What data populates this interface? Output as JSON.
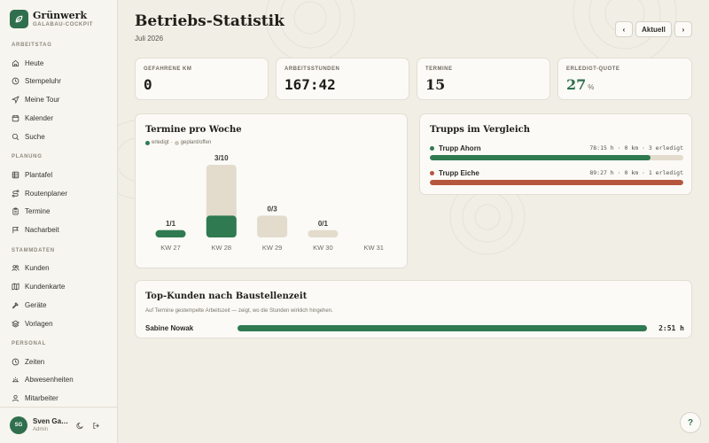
{
  "brand": {
    "name": "Grünwerk",
    "subtitle": "GALABAU-COCKPIT"
  },
  "sidebar": {
    "sections": [
      {
        "title": "ARBEITSTAG",
        "items": [
          {
            "label": "Heute",
            "icon": "home-icon"
          },
          {
            "label": "Stempeluhr",
            "icon": "clock-icon"
          },
          {
            "label": "Meine Tour",
            "icon": "navigation-icon"
          },
          {
            "label": "Kalender",
            "icon": "calendar-icon"
          },
          {
            "label": "Suche",
            "icon": "search-icon"
          }
        ]
      },
      {
        "title": "PLANUNG",
        "items": [
          {
            "label": "Plantafel",
            "icon": "grid-icon"
          },
          {
            "label": "Routenplaner",
            "icon": "route-icon"
          },
          {
            "label": "Termine",
            "icon": "clipboard-icon"
          },
          {
            "label": "Nacharbeit",
            "icon": "flag-icon"
          }
        ]
      },
      {
        "title": "STAMMDATEN",
        "items": [
          {
            "label": "Kunden",
            "icon": "users-icon"
          },
          {
            "label": "Kundenkarte",
            "icon": "map-icon"
          },
          {
            "label": "Geräte",
            "icon": "hammer-icon"
          },
          {
            "label": "Vorlagen",
            "icon": "layers-icon"
          }
        ]
      },
      {
        "title": "PERSONAL",
        "items": [
          {
            "label": "Zeiten",
            "icon": "clock-icon"
          },
          {
            "label": "Abwesenheiten",
            "icon": "sun-icon"
          },
          {
            "label": "Mitarbeiter",
            "icon": "user-icon"
          }
        ]
      }
    ],
    "user": {
      "initials": "SG",
      "name": "Sven Ga…",
      "role": "Admin"
    }
  },
  "header": {
    "title": "Betriebs-Statistik",
    "period": "Juli 2026",
    "prev_label": "‹",
    "current_label": "Aktuell",
    "next_label": "›"
  },
  "kpis": [
    {
      "label": "GEFAHRENE KM",
      "value": "0"
    },
    {
      "label": "ARBEITSSTUNDEN",
      "value": "167:42"
    },
    {
      "label": "TERMINE",
      "value": "15"
    },
    {
      "label": "ERLEDIGT-QUOTE",
      "value": "27",
      "unit": "%"
    }
  ],
  "termine_card": {
    "title": "Termine pro Woche",
    "legend_done": "erledigt",
    "legend_sep": "·",
    "legend_planned": "geplant/offen"
  },
  "chart_data": {
    "type": "bar",
    "categories": [
      "KW 27",
      "KW 28",
      "KW 29",
      "KW 30",
      "KW 31"
    ],
    "series": [
      {
        "name": "erledigt",
        "values": [
          1,
          3,
          0,
          0,
          0
        ]
      },
      {
        "name": "geplant/offen",
        "values": [
          0,
          7,
          3,
          1,
          0
        ]
      }
    ],
    "data_labels": [
      "1/1",
      "3/10",
      "0/3",
      "0/1",
      ""
    ],
    "ylim": [
      0,
      10
    ],
    "colors": {
      "done": "#2f7a50",
      "planned": "#e3dccd"
    }
  },
  "trupps_card": {
    "title": "Trupps im Vergleich",
    "trupps": [
      {
        "name": "Trupp Ahorn",
        "stats": "78:15 h · 0 km · 3 erledigt",
        "fraction": 0.87,
        "color": "#2f7a50"
      },
      {
        "name": "Trupp Eiche",
        "stats": "89:27 h · 0 km · 1 erledigt",
        "fraction": 1.0,
        "color": "#b5573f"
      }
    ]
  },
  "topkunden_card": {
    "title": "Top-Kunden nach Baustellenzeit",
    "subtitle": "Auf Termine gestempelte Arbeitszeit — zeigt, wo die Stunden wirklich hingehen.",
    "rows": [
      {
        "name": "Sabine Nowak",
        "value": "2:51 h",
        "fraction": 1.0
      }
    ]
  },
  "help_label": "?"
}
